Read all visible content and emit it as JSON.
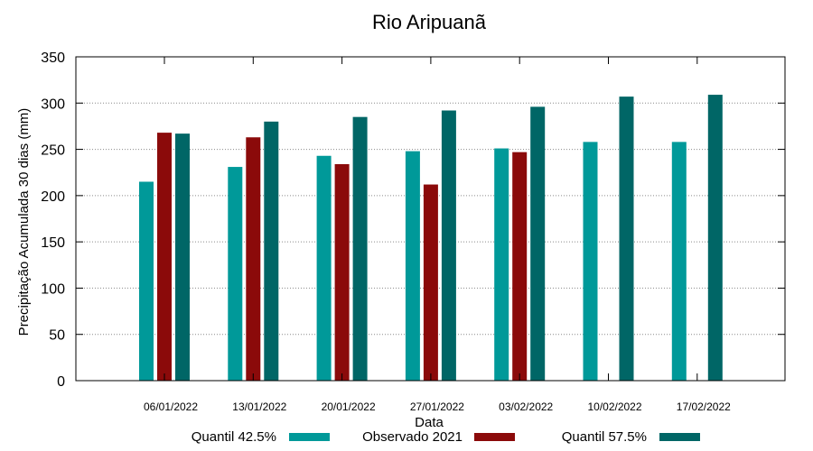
{
  "chart_data": {
    "type": "bar",
    "title": "Rio Aripuanã",
    "xlabel": "Data",
    "ylabel": "Precipitação Acumulada 30 dias (mm)",
    "ylim": [
      0,
      350
    ],
    "yticks": [
      0,
      50,
      100,
      150,
      200,
      250,
      300,
      350
    ],
    "grid": true,
    "legend_position": "bottom",
    "categories": [
      "06/01/2022",
      "13/01/2022",
      "20/01/2022",
      "27/01/2022",
      "03/02/2022",
      "10/02/2022",
      "17/02/2022"
    ],
    "series": [
      {
        "name": "Quantil 42.5%",
        "color": "#009999",
        "values": [
          215,
          231,
          243,
          248,
          251,
          258,
          258
        ]
      },
      {
        "name": "Observado 2021",
        "color": "#8b0a0a",
        "values": [
          268,
          263,
          234,
          212,
          247,
          null,
          null
        ]
      },
      {
        "name": "Quantil 57.5%",
        "color": "#006666",
        "values": [
          267,
          280,
          285,
          292,
          296,
          307,
          309
        ]
      }
    ]
  }
}
